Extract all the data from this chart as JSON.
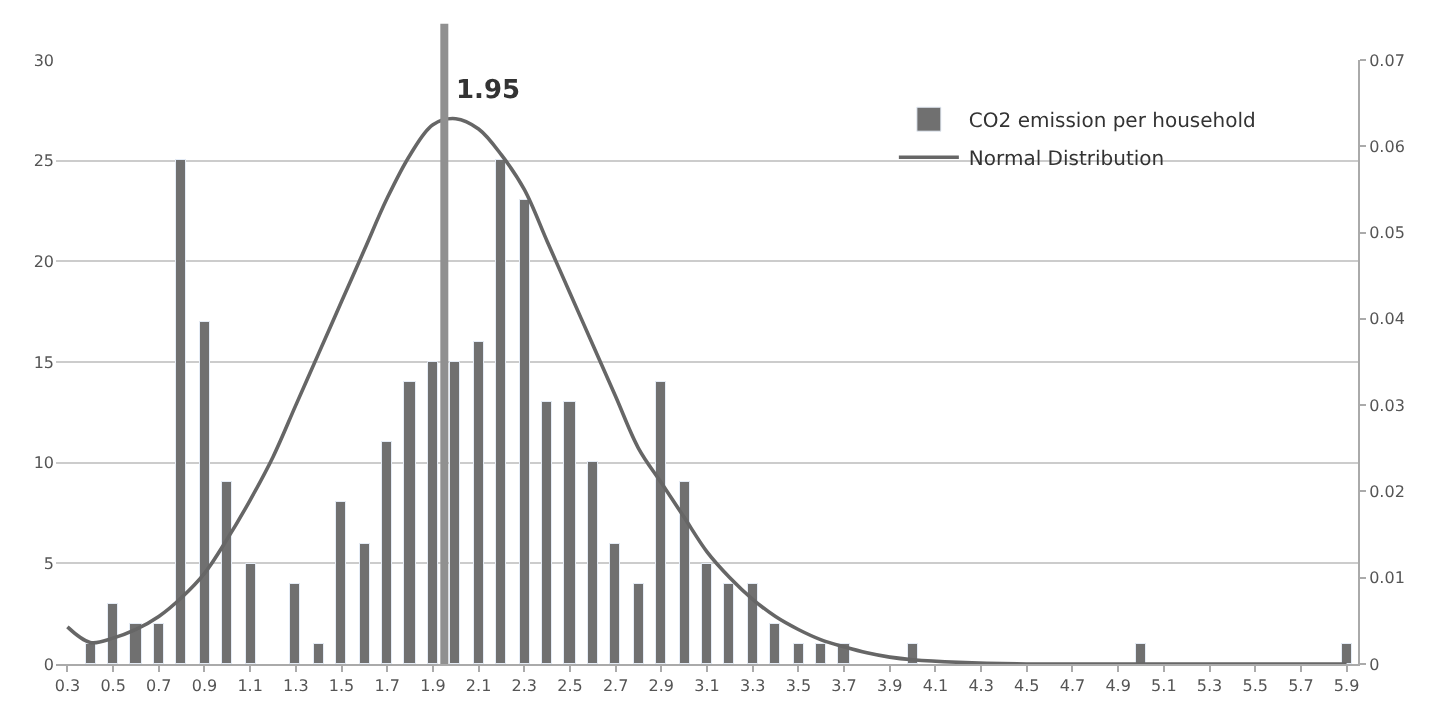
{
  "chart_data": {
    "type": "bar",
    "xlim": [
      0.25,
      5.95
    ],
    "xticks": [
      0.3,
      0.5,
      0.7,
      0.9,
      1.1,
      1.3,
      1.5,
      1.7,
      1.9,
      2.1,
      2.3,
      2.5,
      2.7,
      2.9,
      3.1,
      3.3,
      3.5,
      3.7,
      3.9,
      4.1,
      4.3,
      4.5,
      4.7,
      4.9,
      5.1,
      5.3,
      5.5,
      5.7,
      5.9
    ],
    "ylim": [
      0,
      30
    ],
    "yticks": [
      0,
      5,
      10,
      15,
      20,
      25,
      30
    ],
    "y2lim": [
      0,
      0.07
    ],
    "y2ticks": [
      0,
      0.01,
      0.02,
      0.03,
      0.04,
      0.05,
      0.06,
      0.07
    ],
    "grid": "y",
    "legend": "top right",
    "series": [
      {
        "name": "CO2 emission per household",
        "color": "#707070",
        "x": [
          0.4,
          0.5,
          0.6,
          0.7,
          0.8,
          0.9,
          1.0,
          1.1,
          1.3,
          1.4,
          1.5,
          1.6,
          1.7,
          1.8,
          1.9,
          2.0,
          2.1,
          2.2,
          2.3,
          2.4,
          2.5,
          2.6,
          2.7,
          2.8,
          2.9,
          3.0,
          3.1,
          3.2,
          3.3,
          3.4,
          3.5,
          3.6,
          3.7,
          4.0,
          5.0,
          5.9
        ],
        "values": [
          1,
          3,
          2,
          2,
          25,
          17,
          9,
          5,
          4,
          1,
          8,
          6,
          11,
          14,
          15,
          15,
          16,
          25,
          23,
          13,
          13,
          10,
          6,
          4,
          14,
          9,
          5,
          4,
          4,
          2,
          1,
          1,
          1,
          1,
          1,
          1
        ]
      },
      {
        "name": "Normal Distribution",
        "type": "line",
        "axis": "y2",
        "color": "#666666",
        "marker": "none",
        "line_style": "solid",
        "x": [
          0.3,
          0.4,
          0.5,
          0.6,
          0.7,
          0.8,
          0.9,
          1.0,
          1.1,
          1.2,
          1.3,
          1.4,
          1.5,
          1.6,
          1.7,
          1.8,
          1.9,
          2.0,
          2.1,
          2.2,
          2.3,
          2.4,
          2.5,
          2.6,
          2.7,
          2.8,
          2.9,
          3.0,
          3.1,
          3.2,
          3.3,
          3.4,
          3.5,
          3.6,
          3.7,
          3.8,
          3.9,
          4.0,
          4.2,
          4.5,
          5.0,
          5.9
        ],
        "values": [
          0.0043,
          0.0025,
          0.003,
          0.004,
          0.0055,
          0.0077,
          0.0105,
          0.0145,
          0.019,
          0.024,
          0.03,
          0.036,
          0.042,
          0.048,
          0.054,
          0.059,
          0.0625,
          0.0632,
          0.062,
          0.059,
          0.055,
          0.049,
          0.043,
          0.037,
          0.031,
          0.025,
          0.021,
          0.017,
          0.013,
          0.01,
          0.0075,
          0.0055,
          0.004,
          0.0028,
          0.002,
          0.0013,
          0.0008,
          0.0005,
          0.0002,
          0,
          0,
          0
        ]
      }
    ],
    "ref_lines": [
      {
        "axis": "x",
        "value": 1.95,
        "label": "1.95",
        "color": "#909090"
      }
    ]
  }
}
